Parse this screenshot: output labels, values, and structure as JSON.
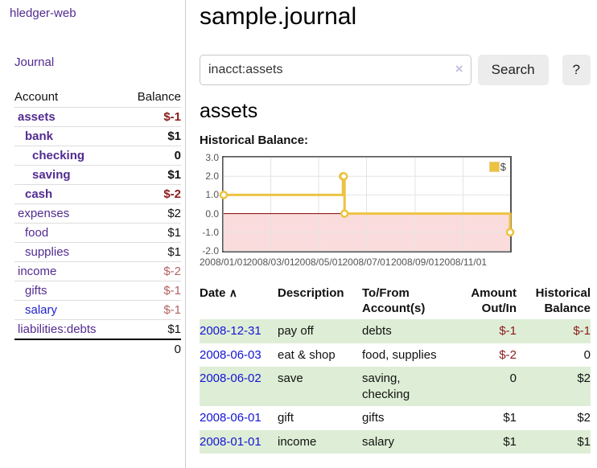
{
  "app": {
    "brand": "hledger-web",
    "nav_journal": "Journal"
  },
  "colors": {
    "accent_purple": "#522b90",
    "link_blue": "#1414d2",
    "negative_strong": "#8b1a1a",
    "negative_soft": "#b56060",
    "row_green": "#deeed6",
    "chart_yellow": "#edc240"
  },
  "sidebar": {
    "header": {
      "account": "Account",
      "balance": "Balance"
    },
    "accounts": [
      {
        "name": "assets",
        "indent": 0,
        "balance": "$-1",
        "bold": true,
        "neg": "strong"
      },
      {
        "name": "bank",
        "indent": 1,
        "balance": "$1",
        "bold": true
      },
      {
        "name": "checking",
        "indent": 2,
        "balance": "0",
        "bold": true
      },
      {
        "name": "saving",
        "indent": 2,
        "balance": "$1",
        "bold": true
      },
      {
        "name": "cash",
        "indent": 1,
        "balance": "$-2",
        "bold": true,
        "neg": "strong"
      },
      {
        "name": "expenses",
        "indent": 0,
        "balance": "$2"
      },
      {
        "name": "food",
        "indent": 1,
        "balance": "$1"
      },
      {
        "name": "supplies",
        "indent": 1,
        "balance": "$1"
      },
      {
        "name": "income",
        "indent": 0,
        "balance": "$-2",
        "neg": "soft"
      },
      {
        "name": "gifts",
        "indent": 1,
        "balance": "$-1",
        "neg": "soft"
      },
      {
        "name": "salary",
        "indent": 1,
        "balance": "$-1",
        "neg": "soft",
        "visited": true
      },
      {
        "name": "liabilities:debts",
        "indent": 0,
        "balance": "$1"
      }
    ],
    "total": "0"
  },
  "header": {
    "title": "sample.journal"
  },
  "search": {
    "value": "inacct:assets",
    "clear_icon": "×",
    "button": "Search",
    "help": "?"
  },
  "account_page": {
    "title": "assets"
  },
  "chart_data": {
    "type": "line",
    "step": true,
    "title": "Historical Balance:",
    "series": [
      {
        "name": "$",
        "color": "#edc240",
        "points": [
          [
            "2008-01-01",
            1
          ],
          [
            "2008-06-01",
            2
          ],
          [
            "2008-06-02",
            2
          ],
          [
            "2008-06-03",
            0
          ],
          [
            "2008-12-31",
            -1
          ]
        ]
      }
    ],
    "ylim": [
      -2,
      3
    ],
    "yticks": [
      3.0,
      2.0,
      1.0,
      0.0,
      -1.0,
      -2.0
    ],
    "xticks": [
      "2008/01/01",
      "2008/03/01",
      "2008/05/01",
      "2008/07/01",
      "2008/09/01",
      "2008/11/01"
    ],
    "grid": true,
    "legend_position": "top-right",
    "negative_region_fill": "#fbdcdc",
    "zero_line_color": "#8b0000",
    "grid_color": "#e3e3e3",
    "border_color": "#545454"
  },
  "register": {
    "sort_icon": "∧",
    "columns": [
      {
        "label": "Date",
        "align": "left",
        "sorted": "asc"
      },
      {
        "label": "Description",
        "align": "left"
      },
      {
        "label": "To/From Account(s)",
        "align": "left"
      },
      {
        "label": "Amount Out/In",
        "align": "right"
      },
      {
        "label": "Historical Balance",
        "align": "right"
      }
    ],
    "rows": [
      {
        "date": "2008-12-31",
        "description": "pay off",
        "accounts": "debts",
        "amount": "$-1",
        "balance": "$-1"
      },
      {
        "date": "2008-06-03",
        "description": "eat & shop",
        "accounts": "food, supplies",
        "amount": "$-2",
        "balance": "0"
      },
      {
        "date": "2008-06-02",
        "description": "save",
        "accounts": "saving, checking",
        "amount": "0",
        "balance": "$2"
      },
      {
        "date": "2008-06-01",
        "description": "gift",
        "accounts": "gifts",
        "amount": "$1",
        "balance": "$2"
      },
      {
        "date": "2008-01-01",
        "description": "income",
        "accounts": "salary",
        "amount": "$1",
        "balance": "$1"
      }
    ]
  }
}
